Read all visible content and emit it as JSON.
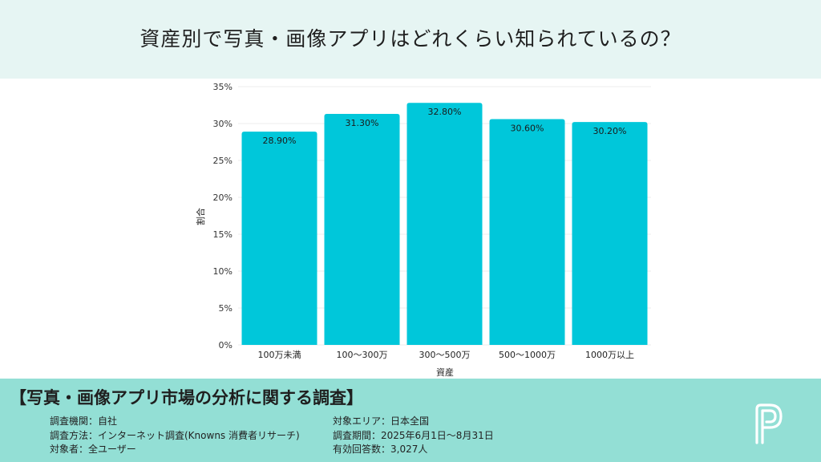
{
  "header": {
    "title": "資産別で写真・画像アプリはどれくらい知られているの？"
  },
  "chart_data": {
    "type": "bar",
    "categories": [
      "100万未満",
      "100〜300万",
      "300〜500万",
      "500〜1000万",
      "1000万以上"
    ],
    "values": [
      28.9,
      31.3,
      32.8,
      30.6,
      30.2
    ],
    "value_labels": [
      "28.90%",
      "31.30%",
      "32.80%",
      "30.60%",
      "30.20%"
    ],
    "xlabel": "資産",
    "ylabel": "割合",
    "ylim": [
      0,
      35
    ],
    "yticks": [
      0,
      5,
      10,
      15,
      20,
      25,
      30,
      35
    ],
    "ytick_labels": [
      "0%",
      "5%",
      "10%",
      "15%",
      "20%",
      "25%",
      "30%",
      "35%"
    ],
    "bar_color": "#00c7da",
    "grid": true
  },
  "footer": {
    "title": "【写真・画像アプリ市場の分析に関する調査】",
    "left": [
      "調査機関：自社",
      "調査方法：インターネット調査(Knowns 消費者リサーチ)",
      "対象者：全ユーザー"
    ],
    "right": [
      "対象エリア：日本全国",
      "調査期間：2025年6月1日〜8月31日",
      "有効回答数：3,027人"
    ],
    "accent_color": "#93dfd5",
    "header_bg": "#e6f5f3",
    "logo_icon": "p-logo-icon"
  }
}
